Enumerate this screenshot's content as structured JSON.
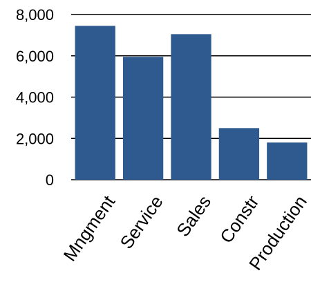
{
  "chart_data": {
    "type": "bar",
    "categories": [
      "Mngment",
      "Service",
      "Sales",
      "Constr",
      "Production"
    ],
    "values": [
      7450,
      5950,
      7050,
      2500,
      1800
    ],
    "yticks": [
      "0",
      "2,000",
      "4,000",
      "6,000",
      "8,000"
    ],
    "ylim": [
      0,
      8000
    ],
    "grid": true,
    "bar_color": "#2f5a8f",
    "grid_color": "#000000"
  }
}
